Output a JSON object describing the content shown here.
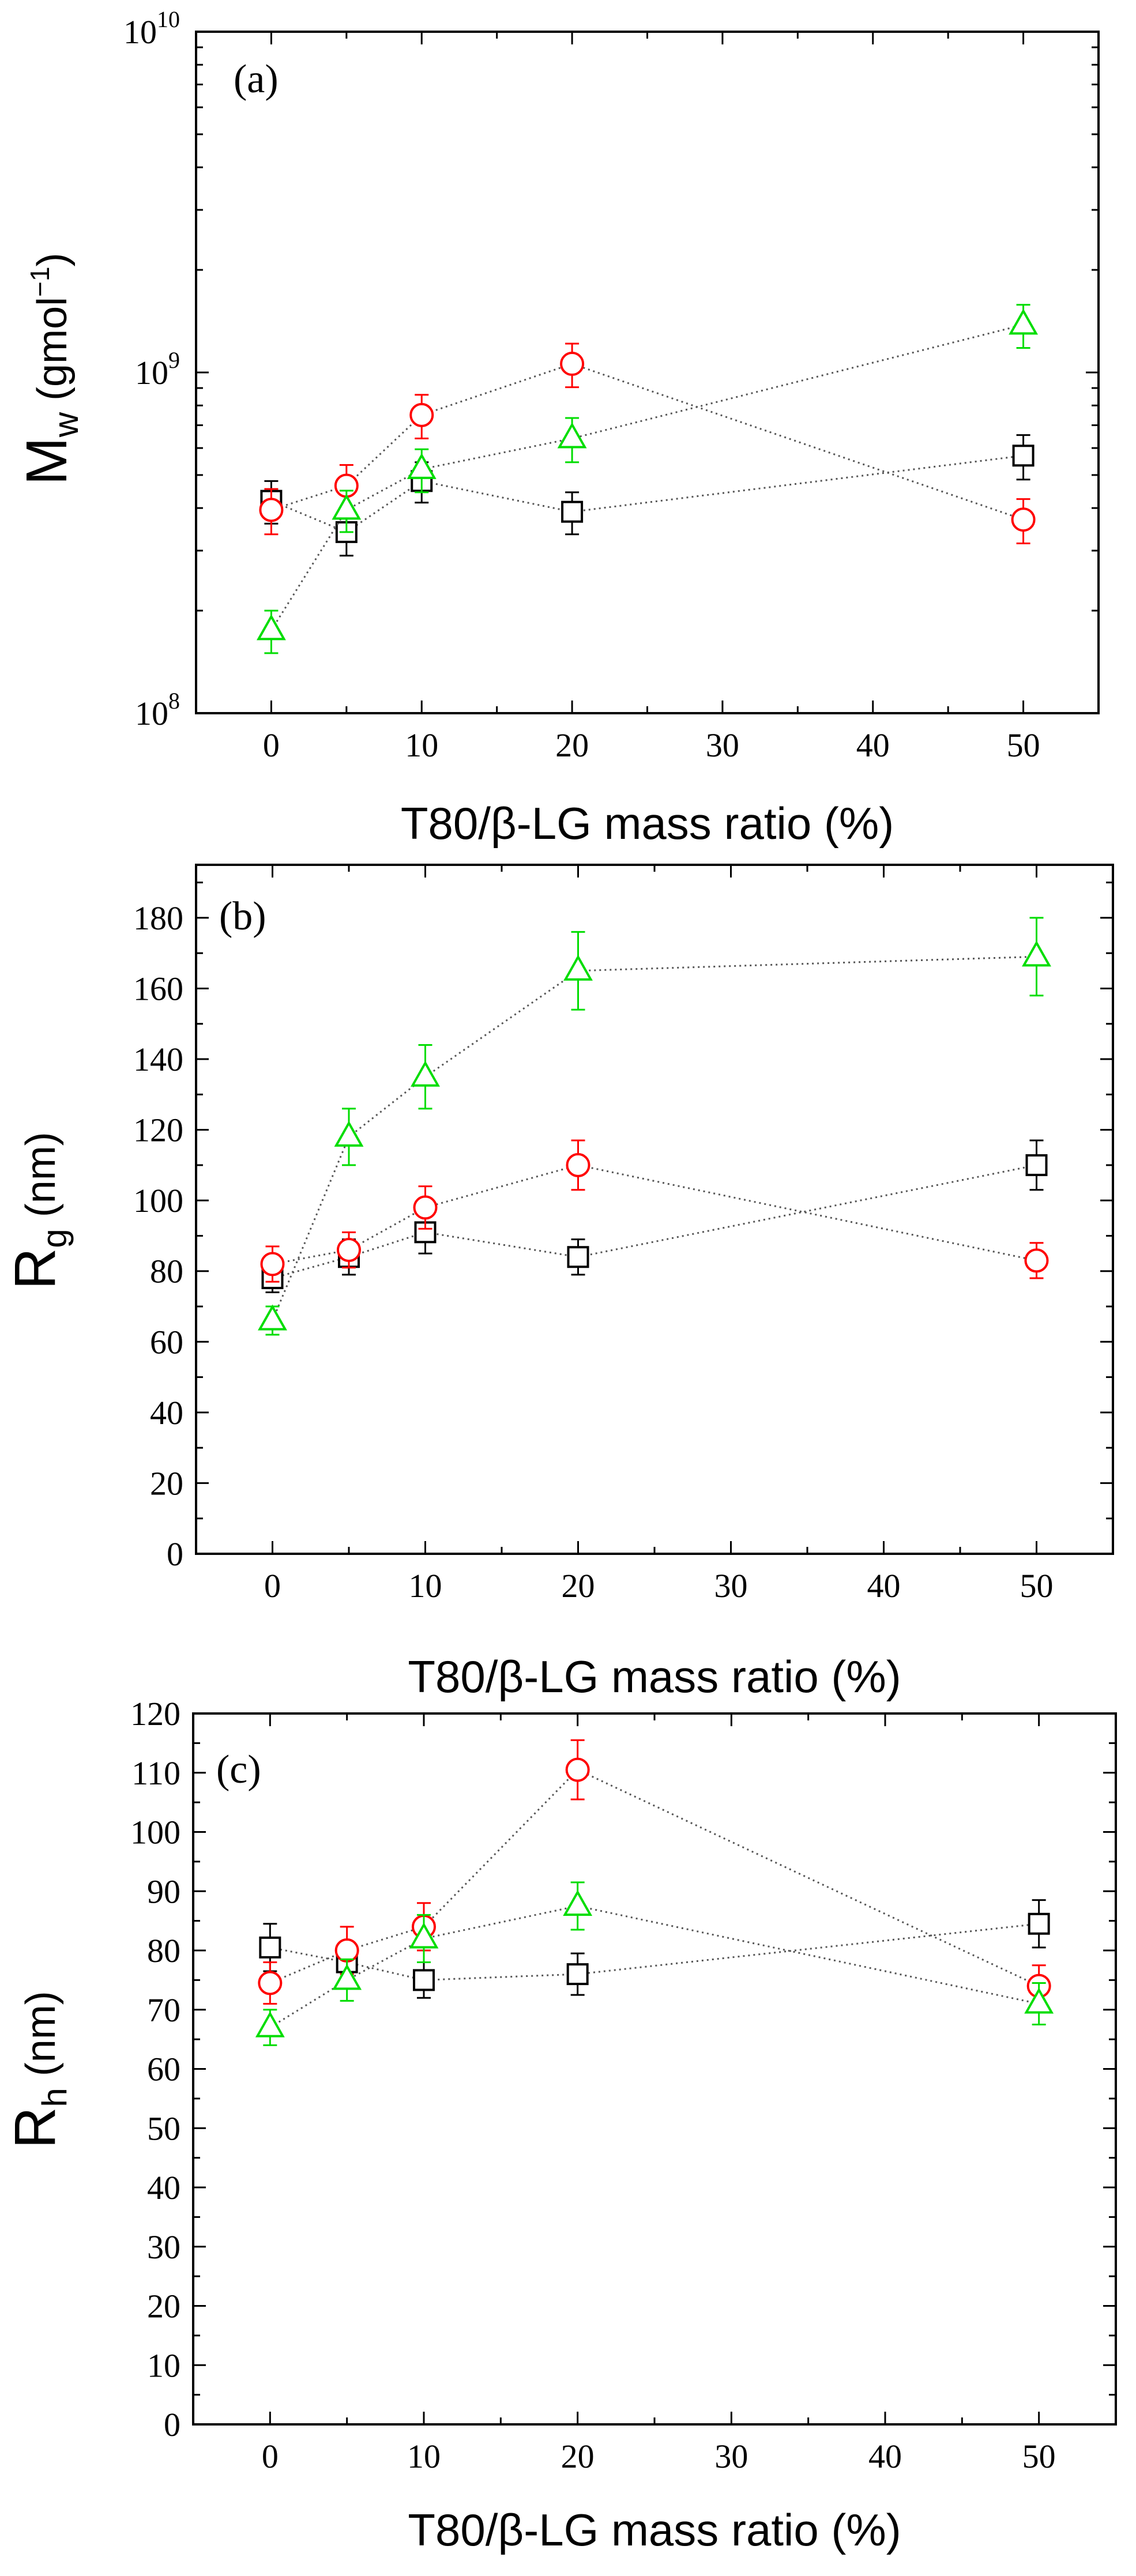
{
  "figure": {
    "x_label": "T80/β-LG mass ratio (%)",
    "series_colors": {
      "squares": "#000000",
      "circles": "#ff0000",
      "triangles": "#00dd00"
    }
  },
  "chart_data": [
    {
      "type": "scatter",
      "panel_label": "(a)",
      "ylabel": {
        "main": "M",
        "sub": "w",
        "unit": " (gmol",
        "sup": "−1",
        "close": ")"
      },
      "xlabel": "T80/β-LG mass ratio (%)",
      "yscale": "log",
      "xlim": [
        -5,
        55
      ],
      "ylim": [
        100000000,
        10000000000
      ],
      "x_ticks": [
        0,
        10,
        20,
        30,
        40,
        50
      ],
      "x_tick_labels": [
        "0",
        "10",
        "20",
        "30",
        "40",
        "50"
      ],
      "y_ticks": [
        100000000,
        1000000000,
        10000000000
      ],
      "y_tick_labels": [
        {
          "base": "10",
          "exp": "8"
        },
        {
          "base": "10",
          "exp": "9"
        },
        {
          "base": "10",
          "exp": "10"
        }
      ],
      "series": [
        {
          "name": "squares",
          "marker": "square",
          "color": "#000000",
          "x": [
            0,
            5,
            10,
            20,
            50
          ],
          "y": [
            420000000,
            340000000,
            480000000,
            390000000,
            570000000
          ],
          "err": [
            60000000,
            50000000,
            65000000,
            55000000,
            85000000
          ]
        },
        {
          "name": "circles",
          "marker": "circle",
          "color": "#ff0000",
          "x": [
            0,
            5,
            10,
            20,
            50
          ],
          "y": [
            395000000,
            465000000,
            750000000,
            1060000000,
            370000000
          ],
          "err": [
            60000000,
            70000000,
            110000000,
            155000000,
            55000000
          ]
        },
        {
          "name": "triangles",
          "marker": "triangle",
          "color": "#00dd00",
          "x": [
            0,
            5,
            10,
            20,
            50
          ],
          "y": [
            175000000,
            395000000,
            520000000,
            640000000,
            1380000000
          ],
          "err": [
            25000000,
            55000000,
            75000000,
            95000000,
            200000000
          ]
        }
      ]
    },
    {
      "type": "scatter",
      "panel_label": "(b)",
      "ylabel": {
        "main": "R",
        "sub": "g",
        "unit": " (nm)",
        "sup": "",
        "close": ""
      },
      "xlabel": "T80/β-LG mass ratio (%)",
      "yscale": "linear",
      "xlim": [
        -5,
        55
      ],
      "ylim": [
        0,
        195
      ],
      "x_ticks": [
        0,
        10,
        20,
        30,
        40,
        50
      ],
      "x_tick_labels": [
        "0",
        "10",
        "20",
        "30",
        "40",
        "50"
      ],
      "y_ticks": [
        0,
        20,
        40,
        60,
        80,
        100,
        120,
        140,
        160,
        180
      ],
      "y_tick_labels": [
        "0",
        "20",
        "40",
        "60",
        "80",
        "100",
        "120",
        "140",
        "160",
        "180"
      ],
      "y_minor_step": 10,
      "series": [
        {
          "name": "squares",
          "marker": "square",
          "color": "#000000",
          "x": [
            0,
            5,
            10,
            20,
            50
          ],
          "y": [
            78,
            84,
            91,
            84,
            110
          ],
          "err": [
            4,
            5,
            6,
            5,
            7
          ]
        },
        {
          "name": "circles",
          "marker": "circle",
          "color": "#ff0000",
          "x": [
            0,
            5,
            10,
            20,
            50
          ],
          "y": [
            82,
            86,
            98,
            110,
            83
          ],
          "err": [
            5,
            5,
            6,
            7,
            5
          ]
        },
        {
          "name": "triangles",
          "marker": "triangle",
          "color": "#00dd00",
          "x": [
            0,
            5,
            10,
            20,
            50
          ],
          "y": [
            66,
            118,
            135,
            165,
            169
          ],
          "err": [
            4,
            8,
            9,
            11,
            11
          ]
        }
      ]
    },
    {
      "type": "scatter",
      "panel_label": "(c)",
      "ylabel": {
        "main": "R",
        "sub": "h",
        "unit": " (nm)",
        "sup": "",
        "close": ""
      },
      "xlabel": "T80/β-LG mass ratio (%)",
      "yscale": "linear",
      "xlim": [
        -5,
        55
      ],
      "ylim": [
        0,
        120
      ],
      "x_ticks": [
        0,
        10,
        20,
        30,
        40,
        50
      ],
      "x_tick_labels": [
        "0",
        "10",
        "20",
        "30",
        "40",
        "50"
      ],
      "y_ticks": [
        0,
        10,
        20,
        30,
        40,
        50,
        60,
        70,
        80,
        90,
        100,
        110,
        120
      ],
      "y_tick_labels": [
        "0",
        "10",
        "20",
        "30",
        "40",
        "50",
        "60",
        "70",
        "80",
        "90",
        "100",
        "110",
        "120"
      ],
      "y_minor_step": 5,
      "series": [
        {
          "name": "squares",
          "marker": "square",
          "color": "#000000",
          "x": [
            0,
            5,
            10,
            20,
            50
          ],
          "y": [
            80.5,
            78,
            75,
            76,
            84.5
          ],
          "err": [
            4,
            3.5,
            3,
            3.5,
            4
          ]
        },
        {
          "name": "circles",
          "marker": "circle",
          "color": "#ff0000",
          "x": [
            0,
            5,
            10,
            20,
            50
          ],
          "y": [
            74.5,
            80,
            84,
            110.5,
            74
          ],
          "err": [
            3.5,
            4,
            4,
            5,
            3.5
          ]
        },
        {
          "name": "triangles",
          "marker": "triangle",
          "color": "#00dd00",
          "x": [
            0,
            5,
            10,
            20,
            50
          ],
          "y": [
            67,
            75,
            82,
            87.5,
            71
          ],
          "err": [
            3,
            3.5,
            4,
            4,
            3.5
          ]
        }
      ]
    }
  ]
}
